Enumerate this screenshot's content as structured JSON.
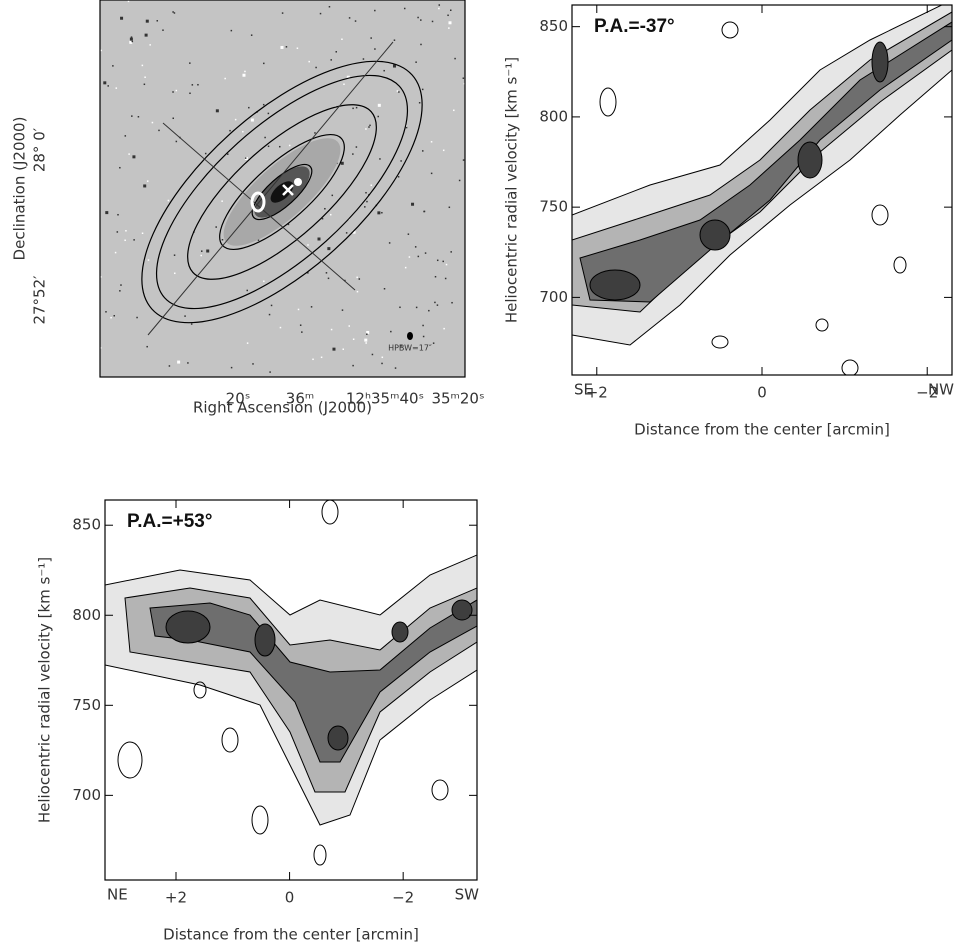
{
  "chart_data": [
    {
      "type": "image",
      "xlabel": "Right Ascension (J2000)",
      "ylabel": "Declination (J2000)",
      "xtick_labels": [
        "20ˢ",
        "36ᵐ",
        "12ʰ35ᵐ40ˢ",
        "35ᵐ20ˢ"
      ],
      "ytick_labels": [
        "28° 0′",
        "27°52′"
      ],
      "annotation": "HPBW=17″"
    },
    {
      "type": "contour",
      "title": "P.A.=-37°",
      "xlabel": "Distance from the center [arcmin]",
      "ylabel": "Heliocentric radial velocity [km s⁻¹]",
      "xlim": [
        2.3,
        -2.3
      ],
      "xticks": [
        {
          "value": 2,
          "label": "+2"
        },
        0,
        {
          "value": -2,
          "label": "−2"
        }
      ],
      "ylim": [
        657,
        862
      ],
      "yticks": [
        700,
        750,
        800,
        850
      ],
      "x_end_labels": [
        "SE",
        "NW"
      ]
    },
    {
      "type": "contour",
      "title": "P.A.=+53°",
      "xlabel": "Distance from the center [arcmin]",
      "ylabel": "Heliocentric radial velocity [km s⁻¹]",
      "xlim": [
        3.25,
        -3.3
      ],
      "xticks": [
        {
          "value": 2,
          "label": "+2"
        },
        0,
        {
          "value": -2,
          "label": "−2"
        }
      ],
      "ylim": [
        653,
        864
      ],
      "yticks": [
        700,
        750,
        800,
        850
      ],
      "x_end_labels": [
        "NE",
        "SW"
      ]
    }
  ]
}
